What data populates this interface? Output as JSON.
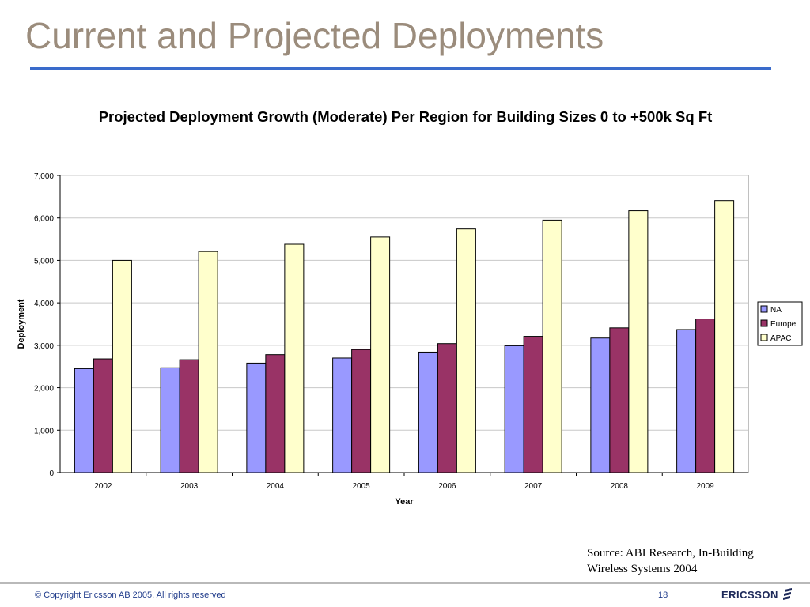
{
  "slide": {
    "title": "Current and Projected Deployments",
    "accent_color": "#3a6bcb",
    "title_color": "#9b8c7c"
  },
  "chart_data": {
    "type": "bar",
    "title": "Projected Deployment Growth (Moderate) Per Region for Building Sizes 0 to +500k Sq Ft",
    "xlabel": "Year",
    "ylabel": "Deployment",
    "categories": [
      "2002",
      "2003",
      "2004",
      "2005",
      "2006",
      "2007",
      "2008",
      "2009"
    ],
    "ylim": [
      0,
      7000
    ],
    "yticks": [
      0,
      1000,
      2000,
      3000,
      4000,
      5000,
      6000,
      7000
    ],
    "ytick_labels": [
      "0",
      "1,000",
      "2,000",
      "3,000",
      "4,000",
      "5,000",
      "6,000",
      "7,000"
    ],
    "grid": true,
    "legend_position": "right",
    "series": [
      {
        "name": "NA",
        "color": "#9999ff",
        "values": [
          2450,
          2470,
          2580,
          2700,
          2840,
          2990,
          3170,
          3370
        ]
      },
      {
        "name": "Europe",
        "color": "#993366",
        "values": [
          2680,
          2660,
          2780,
          2900,
          3040,
          3210,
          3410,
          3620
        ]
      },
      {
        "name": "APAC",
        "color": "#ffffcc",
        "values": [
          5000,
          5210,
          5380,
          5550,
          5740,
          5950,
          6170,
          6410
        ]
      }
    ]
  },
  "source": {
    "line1": "Source: ABI Research, In-Building",
    "line2": "Wireless Systems 2004"
  },
  "footer": {
    "copyright": "© Copyright Ericsson AB 2005. All rights reserved",
    "page_number": "18",
    "logo_text": "ERICSSON"
  }
}
